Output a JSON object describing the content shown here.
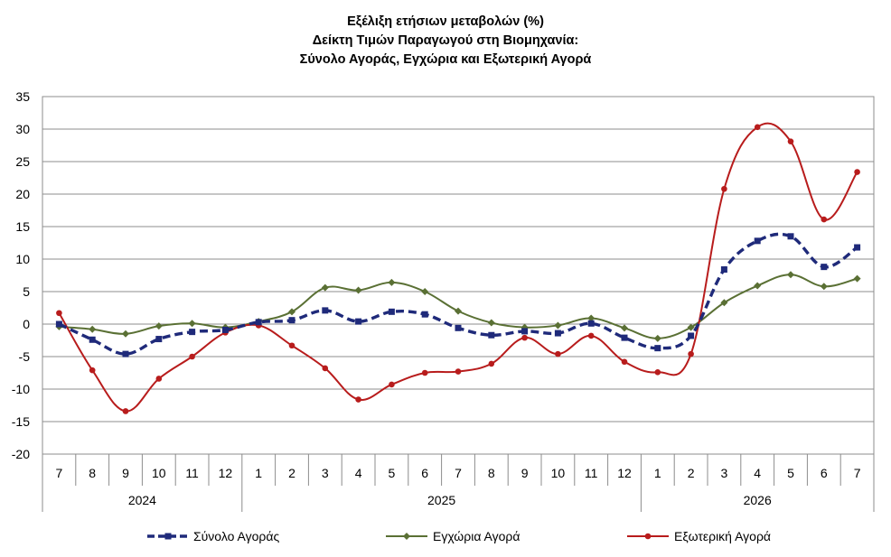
{
  "chart_data": {
    "type": "line",
    "title": [
      "Εξέλιξη ετήσιων μεταβολών (%)",
      "Δείκτη Τιμών Παραγωγού στη Βιομηχανία:",
      "Σύνολο Αγοράς, Εγχώρια και Εξωτερική Αγορά"
    ],
    "ylim": [
      -20,
      35
    ],
    "yticks": [
      35,
      30,
      25,
      20,
      15,
      10,
      5,
      0,
      -5,
      -10,
      -15,
      -20
    ],
    "grid": true,
    "legend_position": "bottom",
    "categories": [
      "7",
      "8",
      "9",
      "10",
      "11",
      "12",
      "1",
      "2",
      "3",
      "4",
      "5",
      "6",
      "7",
      "8",
      "9",
      "10",
      "11",
      "12",
      "1",
      "2",
      "3",
      "4",
      "5",
      "6",
      "7"
    ],
    "year_groups": [
      {
        "label": "2024",
        "start": 0,
        "end": 5
      },
      {
        "label": "2025",
        "start": 6,
        "end": 17
      },
      {
        "label": "2026",
        "start": 18,
        "end": 24
      }
    ],
    "series": [
      {
        "name": "Σύνολο Αγοράς",
        "color": "#1f2a7a",
        "style": "dashed",
        "marker": "square",
        "values": [
          0.0,
          -2.4,
          -4.6,
          -2.3,
          -1.2,
          -0.9,
          0.3,
          0.6,
          2.1,
          0.4,
          1.9,
          1.5,
          -0.6,
          -1.7,
          -1.1,
          -1.4,
          0.1,
          -2.1,
          -3.7,
          -1.8,
          8.4,
          12.8,
          13.5,
          8.8,
          11.8
        ]
      },
      {
        "name": "Εγχώρια Αγορά",
        "color": "#5a7034",
        "style": "solid",
        "marker": "diamond",
        "values": [
          -0.4,
          -0.8,
          -1.5,
          -0.3,
          0.1,
          -0.5,
          0.4,
          1.9,
          5.6,
          5.2,
          6.4,
          5.0,
          2.0,
          0.2,
          -0.5,
          -0.2,
          0.9,
          -0.6,
          -2.2,
          -0.5,
          3.3,
          5.9,
          7.6,
          5.8,
          7.0
        ]
      },
      {
        "name": "Εξωτερική Αγορά",
        "color": "#b81c1c",
        "style": "solid",
        "marker": "circle",
        "values": [
          1.7,
          -7.1,
          -13.4,
          -8.4,
          -5.0,
          -1.3,
          -0.2,
          -3.3,
          -6.8,
          -11.6,
          -9.3,
          -7.5,
          -7.3,
          -6.1,
          -2.1,
          -4.6,
          -1.8,
          -5.8,
          -7.4,
          -4.6,
          20.8,
          30.3,
          28.1,
          16.1,
          23.4
        ]
      }
    ]
  }
}
